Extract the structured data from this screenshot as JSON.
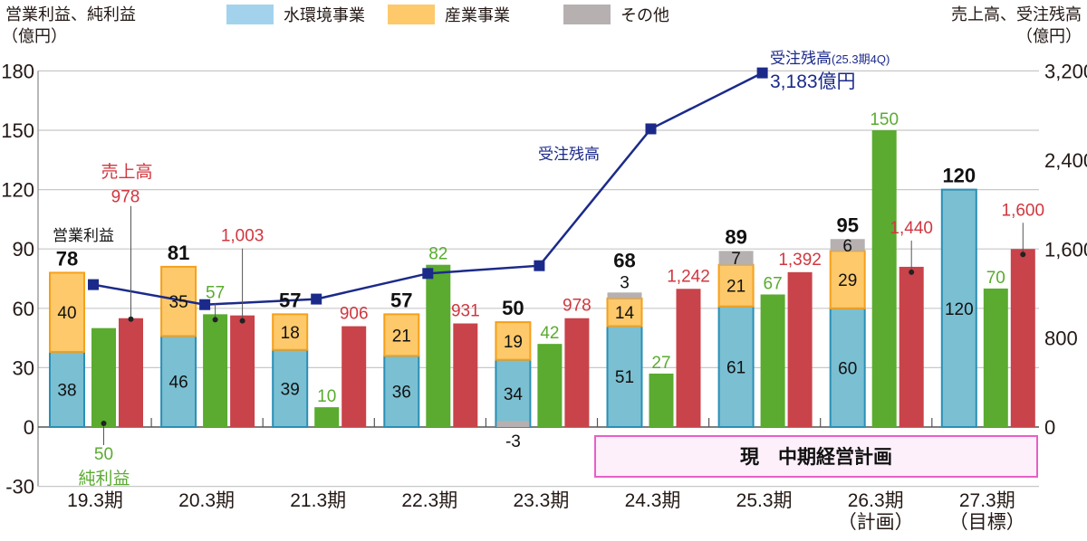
{
  "chart_data": {
    "type": "bar",
    "left_axis_title": [
      "営業利益、純利益",
      "（億円）"
    ],
    "right_axis_title": [
      "売上高、受注残高",
      "（億円）"
    ],
    "left_ylim": [
      -30,
      180
    ],
    "left_ticks": [
      "180",
      "150",
      "120",
      "90",
      "60",
      "30",
      "0",
      "-30"
    ],
    "right_ylim": [
      0,
      3200
    ],
    "right_ticks": [
      "3,200",
      "2,400",
      "1,600",
      "800",
      "0"
    ],
    "grid": true,
    "legend_position": "top",
    "legend": [
      {
        "name": "水環境事業",
        "color": "#a3d3ec"
      },
      {
        "name": "産業事業",
        "color": "#fdc96b"
      },
      {
        "name": "その他",
        "color": "#b6b0b0"
      }
    ],
    "categories": [
      "19.3期",
      "20.3期",
      "21.3期",
      "22.3期",
      "23.3期",
      "24.3期",
      "25.3期",
      "26.3期",
      "27.3期"
    ],
    "category_sublabels": [
      "",
      "",
      "",
      "",
      "",
      "",
      "",
      "（計画）",
      "（目標）"
    ],
    "series": [
      {
        "name": "水環境事業",
        "axis": "left",
        "stack": "operating",
        "color": "#7bbfd2",
        "values": [
          38,
          46,
          39,
          36,
          34,
          51,
          61,
          60,
          120
        ]
      },
      {
        "name": "産業事業",
        "axis": "left",
        "stack": "operating",
        "color": "#fdc96b",
        "values": [
          40,
          35,
          18,
          21,
          19,
          14,
          21,
          29,
          null
        ]
      },
      {
        "name": "その他",
        "axis": "left",
        "stack": "operating",
        "color": "#b6b0b0",
        "values": [
          null,
          null,
          null,
          null,
          -3,
          3,
          7,
          6,
          null
        ]
      },
      {
        "name": "純利益",
        "axis": "left",
        "color": "#5aab30",
        "values": [
          50,
          57,
          10,
          82,
          42,
          27,
          67,
          150,
          70
        ]
      },
      {
        "name": "売上高",
        "axis": "right",
        "color": "#c9434a",
        "values": [
          978,
          1003,
          906,
          931,
          978,
          1242,
          1392,
          1440,
          1600
        ],
        "labels": [
          "978",
          "1,003",
          "906",
          "931",
          "978",
          "1,242",
          "1,392",
          "1,440",
          "1,600"
        ]
      },
      {
        "name": "受注残高",
        "axis": "right",
        "type": "line",
        "color": "#1b2a8a",
        "values": [
          1280,
          1100,
          1150,
          1380,
          1450,
          2680,
          3183,
          null,
          null
        ]
      }
    ],
    "operating_profit_totals": [
      78,
      81,
      57,
      57,
      50,
      68,
      89,
      95,
      120
    ],
    "annotations": {
      "operating_profit": "営業利益",
      "sales": "売上高",
      "net_profit": "純利益",
      "backlog": "受注残高",
      "backlog_latest_title": "受注残高",
      "backlog_latest_period": "(25.3期4Q)",
      "backlog_latest_value": "3,183億円",
      "plan_box": "現　中期経営計画"
    }
  }
}
